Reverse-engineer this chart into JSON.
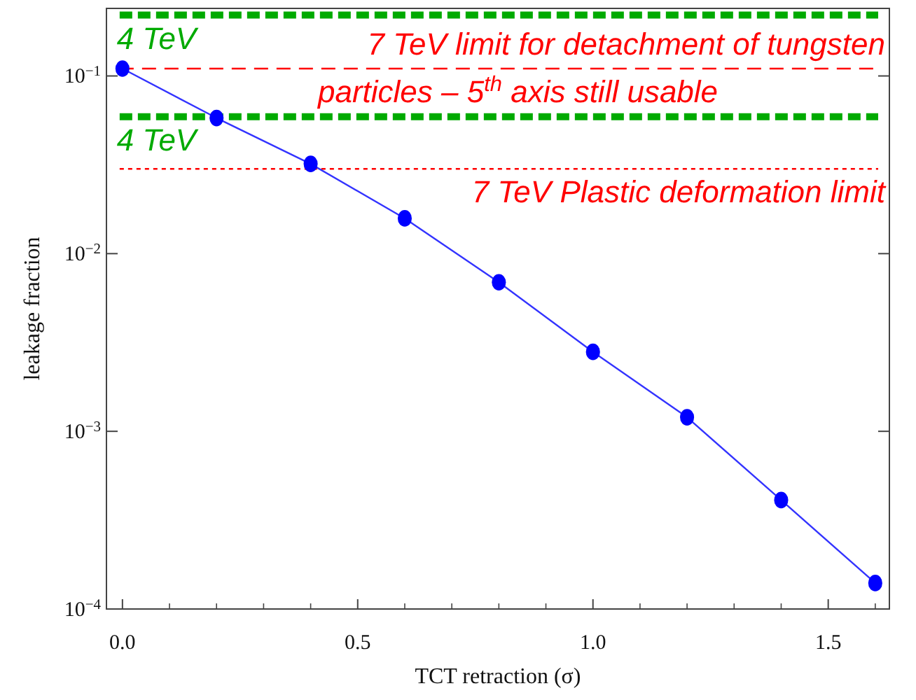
{
  "chart_data": {
    "type": "line",
    "x": [
      0,
      0.2,
      0.4,
      0.6,
      0.8,
      1.0,
      1.2,
      1.4,
      1.6
    ],
    "series": [
      {
        "color": "#0000ff",
        "values": [
          0.11,
          0.058,
          0.032,
          0.0158,
          0.0069,
          0.0028,
          0.0012,
          0.00041,
          0.00014
        ]
      }
    ],
    "marker": "circle",
    "log": "y",
    "xlim": [
      -0.034,
      1.63
    ],
    "ylim": [
      0.0001,
      0.24
    ],
    "xticks": [
      {
        "value": 0,
        "label": "0.0"
      },
      {
        "value": 0.1,
        "label": null
      },
      {
        "value": 0.2,
        "label": null
      },
      {
        "value": 0.3,
        "label": null
      },
      {
        "value": 0.4,
        "label": null
      },
      0.5,
      {
        "value": 0.6,
        "label": null
      },
      {
        "value": 0.7,
        "label": null
      },
      {
        "value": 0.8,
        "label": null
      },
      {
        "value": 0.9,
        "label": null
      },
      {
        "value": 1.0,
        "label": "1.0"
      },
      {
        "value": 1.1,
        "label": null
      },
      {
        "value": 1.2,
        "label": null
      },
      {
        "value": 1.3,
        "label": null
      },
      {
        "value": 1.4,
        "label": null
      },
      1.5,
      {
        "value": 1.6,
        "label": null
      }
    ],
    "yticks": [
      {
        "value": 0.0001,
        "label": "10$^{−4}$"
      },
      {
        "value": 0.001,
        "label": "10$^{−3}$"
      },
      {
        "value": 0.01,
        "label": "10$^{−2}$"
      },
      {
        "value": 0.1,
        "label": "10$^{−1}$"
      }
    ],
    "xlabel": "TCT retraction (σ)",
    "ylabel": "leakage fraction",
    "ref_lines": [
      {
        "axis": "y",
        "value": 0.22,
        "label": "4 TeV",
        "color": "#00aa00",
        "line_style": "dotted"
      },
      {
        "axis": "y",
        "value": 0.11,
        "label": "7 TeV limit for detachment of tungsten particles – 5$^{th}$ axis still usable",
        "color": "#ff0000",
        "line_style": "dashed"
      },
      {
        "axis": "y",
        "value": 0.059,
        "label": "4 TeV",
        "color": "#00aa00",
        "line_style": "dotted"
      },
      {
        "axis": "y",
        "value": 0.03,
        "label": "7 TeV Plastic deformation limit",
        "color": "#ff0000",
        "line_style": "dotted"
      }
    ]
  }
}
